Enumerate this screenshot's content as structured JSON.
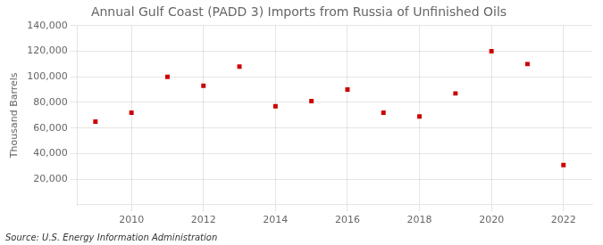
{
  "chart_data": {
    "type": "scatter",
    "title": "Annual Gulf Coast (PADD 3) Imports from Russia of Unfinished Oils",
    "y_label": "Thousand Barrels",
    "annotation": "Source: U.S. Energy Information Administration",
    "x": [
      2009,
      2010,
      2011,
      2012,
      2013,
      2014,
      2015,
      2016,
      2017,
      2018,
      2019,
      2020,
      2021,
      2022
    ],
    "values": [
      65000,
      72000,
      100000,
      93000,
      108000,
      77000,
      81000,
      90000,
      72000,
      69000,
      87000,
      120000,
      110000,
      31000
    ],
    "color": "#cc0000",
    "marker": "square",
    "xlim": [
      2008.5,
      2022.8
    ],
    "xticks": [
      2010,
      2012,
      2014,
      2016,
      2018,
      2020,
      2022
    ],
    "ylim": [
      0,
      140000
    ],
    "yticks": [
      {
        "value": 20000,
        "label": "20,000"
      },
      {
        "value": 40000,
        "label": "40,000"
      },
      {
        "value": 60000,
        "label": "60,000"
      },
      {
        "value": 80000,
        "label": "80,000"
      },
      {
        "value": 100000,
        "label": "100,000"
      },
      {
        "value": 120000,
        "label": "120,000"
      },
      {
        "value": 140000,
        "label": "140,000"
      }
    ],
    "grid": true
  }
}
